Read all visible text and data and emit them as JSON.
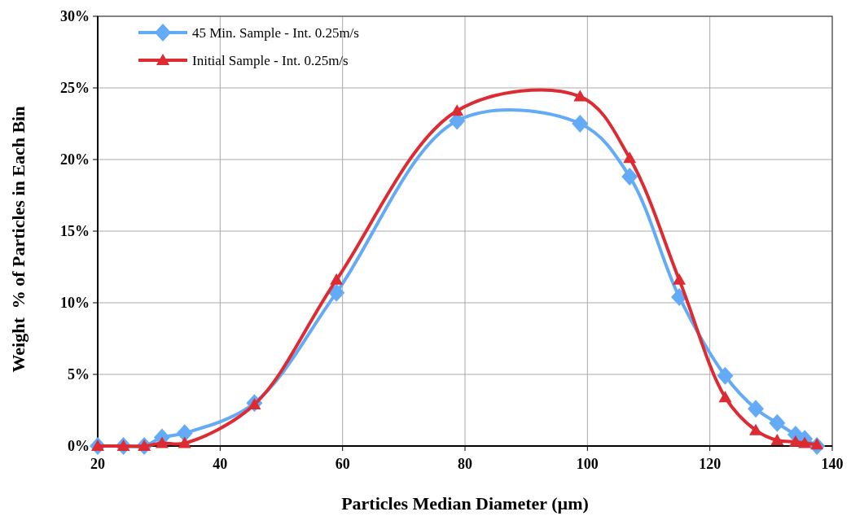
{
  "chart_data": {
    "type": "line",
    "xlabel": "Particles Median Diameter (µm)",
    "ylabel": "Weight  % of Particles in Each Bin",
    "x": [
      20,
      24.2,
      27.6,
      30.5,
      34.2,
      45.6,
      59,
      78.7,
      98.8,
      106.9,
      115,
      122.5,
      127.5,
      131,
      134,
      135.5,
      137.5
    ],
    "series": [
      {
        "name": "45 Min. Sample - Int. 0.25m/s",
        "color": "#63aaf7",
        "marker": "diamond",
        "values": [
          0,
          0,
          0,
          0.6,
          0.9,
          3.0,
          10.7,
          22.7,
          22.5,
          18.8,
          10.4,
          4.9,
          2.6,
          1.6,
          0.8,
          0.5,
          0
        ]
      },
      {
        "name": "Initial Sample - Int. 0.25m/s",
        "color": "#dd2b33",
        "marker": "triangle",
        "values": [
          0,
          0,
          0,
          0.2,
          0.2,
          2.9,
          11.6,
          23.4,
          24.4,
          20.1,
          11.6,
          3.4,
          1.1,
          0.4,
          0.3,
          0.2,
          0.1
        ]
      }
    ],
    "xlim": [
      20,
      140
    ],
    "xticks": [
      20,
      40,
      60,
      80,
      100,
      120,
      140
    ],
    "ylim": [
      0,
      30
    ],
    "yticks": [
      {
        "value": 0,
        "label": "0%"
      },
      {
        "value": 5,
        "label": "5%"
      },
      {
        "value": 10,
        "label": "10%"
      },
      {
        "value": 15,
        "label": "15%"
      },
      {
        "value": 20,
        "label": "20%"
      },
      {
        "value": 25,
        "label": "25%"
      },
      {
        "value": 30,
        "label": "30%"
      }
    ],
    "grid": true,
    "legend": "top left"
  }
}
